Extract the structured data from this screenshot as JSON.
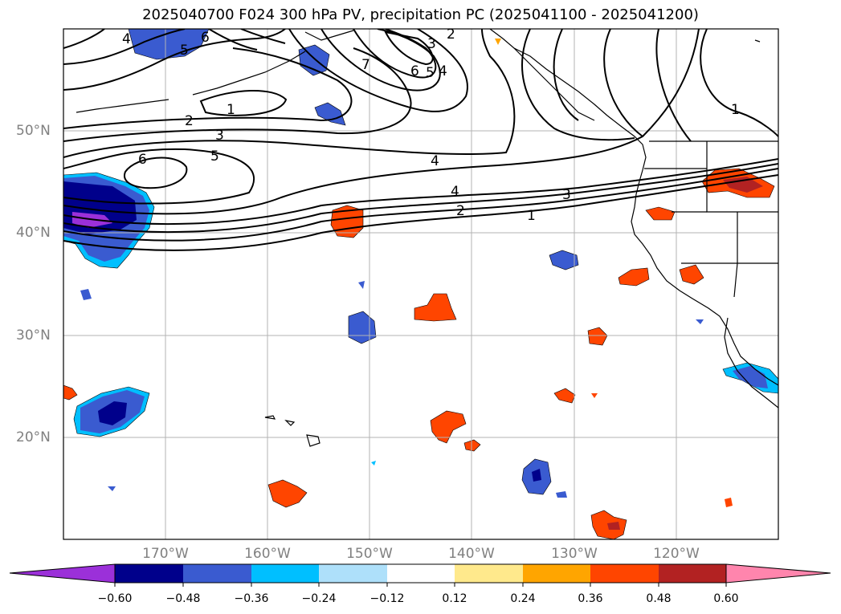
{
  "title": "2025040700 F024 300 hPa PV, precipitation PC (2025041100 - 2025041200)",
  "lat_labels": [
    "50°N",
    "40°N",
    "30°N",
    "20°N"
  ],
  "lon_labels": [
    "170°W",
    "160°W",
    "150°W",
    "140°W",
    "130°W",
    "120°W"
  ],
  "contour_labels": [
    "4",
    "5",
    "6",
    "1",
    "2",
    "3",
    "6",
    "5",
    "4",
    "4",
    "3",
    "2",
    "1",
    "7",
    "6",
    "5",
    "4",
    "3",
    "2",
    "1"
  ],
  "colorbar": {
    "ticks": [
      "−0.60",
      "−0.48",
      "−0.36",
      "−0.24",
      "−0.12",
      "0.12",
      "0.24",
      "0.36",
      "0.48",
      "0.60"
    ],
    "colors": [
      "#9b30d9",
      "#00008b",
      "#3a5bd0",
      "#00bfff",
      "#aee0fa",
      "#ffffff",
      "#ffe98c",
      "#ffa500",
      "#ff4500",
      "#b22222",
      "#ff85ad"
    ]
  }
}
